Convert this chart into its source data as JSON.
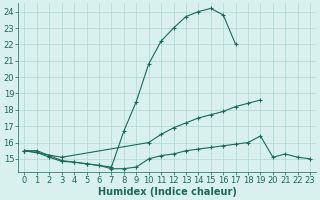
{
  "x": [
    0,
    1,
    2,
    3,
    4,
    5,
    6,
    7,
    8,
    9,
    10,
    11,
    12,
    13,
    14,
    15,
    16,
    17,
    18,
    19,
    20,
    21,
    22,
    23
  ],
  "curve_top": [
    15.5,
    15.5,
    15.2,
    14.9,
    14.8,
    14.7,
    14.6,
    14.5,
    16.7,
    18.5,
    20.8,
    22.2,
    23.0,
    23.7,
    24.0,
    24.2,
    23.8,
    22.0,
    null,
    null,
    null,
    null,
    null,
    null
  ],
  "curve_mid": [
    15.5,
    null,
    null,
    15.1,
    null,
    null,
    null,
    null,
    null,
    null,
    16.0,
    16.5,
    16.9,
    17.2,
    17.5,
    17.7,
    17.9,
    18.2,
    18.4,
    18.6,
    null,
    null,
    null,
    null
  ],
  "curve_bot": [
    15.5,
    15.4,
    15.1,
    14.85,
    14.8,
    14.7,
    14.6,
    14.4,
    14.4,
    14.5,
    15.0,
    15.2,
    15.3,
    15.5,
    15.6,
    15.7,
    15.8,
    15.9,
    16.0,
    16.4,
    15.1,
    15.3,
    15.1,
    15.0
  ],
  "color": "#1a6b5a",
  "bg_color": "#d8f0ee",
  "grid_color": "#b0d8d0",
  "xlabel": "Humidex (Indice chaleur)",
  "ylim": [
    14.2,
    24.5
  ],
  "yticks": [
    15,
    16,
    17,
    18,
    19,
    20,
    21,
    22,
    23,
    24
  ],
  "xticks": [
    0,
    1,
    2,
    3,
    4,
    5,
    6,
    7,
    8,
    9,
    10,
    11,
    12,
    13,
    14,
    15,
    16,
    17,
    18,
    19,
    20,
    21,
    22,
    23
  ],
  "xlabel_fontsize": 7,
  "tick_fontsize": 6
}
